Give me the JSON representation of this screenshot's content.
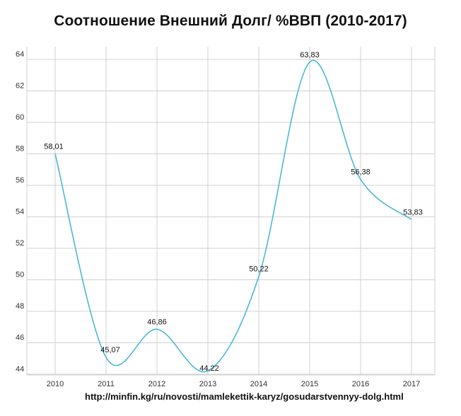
{
  "chart_data": {
    "type": "line",
    "title": "Соотношение Внешний Долг/ %ВВП (2010-2017)",
    "categories": [
      "2010",
      "2011",
      "2012",
      "2013",
      "2014",
      "2015",
      "2016",
      "2017"
    ],
    "series": [
      {
        "values": [
          58.01,
          45.07,
          46.86,
          44.22,
          50.22,
          63.83,
          56.38,
          53.83
        ],
        "labels": [
          "58,01",
          "45,07",
          "46,86",
          "44,22",
          "50,22",
          "63,83",
          "56,38",
          "53,83"
        ],
        "color": "#4bb8d4"
      }
    ],
    "yticks": [
      44,
      46,
      48,
      50,
      52,
      54,
      56,
      58,
      60,
      62,
      64
    ],
    "ylim": [
      43.5,
      65
    ],
    "grid": true,
    "smooth": true,
    "source": "http://minfin.kg/ru/novosti/mamlekettik-karyz/gosudarstvennyy-dolg.html"
  }
}
